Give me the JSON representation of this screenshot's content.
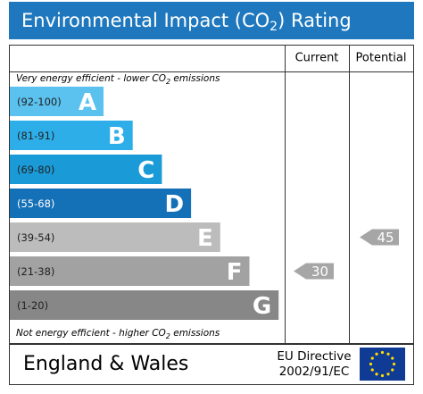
{
  "title": {
    "before": "Environmental Impact (CO",
    "sub": "2",
    "after": ") Rating"
  },
  "columns": {
    "current": "Current",
    "potential": "Potential"
  },
  "top_note": {
    "before": "Very energy efficient - lower CO",
    "sub": "2",
    "after": " emissions"
  },
  "bottom_note": {
    "before": "Not energy efficient - higher CO",
    "sub": "2",
    "after": " emissions"
  },
  "bands": [
    {
      "range": "(92-100)",
      "letter": "A",
      "color": "#5bc1ee"
    },
    {
      "range": "(81-91)",
      "letter": "B",
      "color": "#2eaee8"
    },
    {
      "range": "(69-80)",
      "letter": "C",
      "color": "#1a9ad7"
    },
    {
      "range": "(55-68)",
      "letter": "D",
      "color": "#1470b7"
    },
    {
      "range": "(39-54)",
      "letter": "E",
      "color": "#bcbcbc"
    },
    {
      "range": "(21-38)",
      "letter": "F",
      "color": "#a2a2a2"
    },
    {
      "range": "(1-20)",
      "letter": "G",
      "color": "#878787"
    }
  ],
  "current": 30,
  "potential": 45,
  "footer": {
    "region": "England & Wales",
    "directive_line1": "EU Directive",
    "directive_line2": "2002/91/EC"
  }
}
